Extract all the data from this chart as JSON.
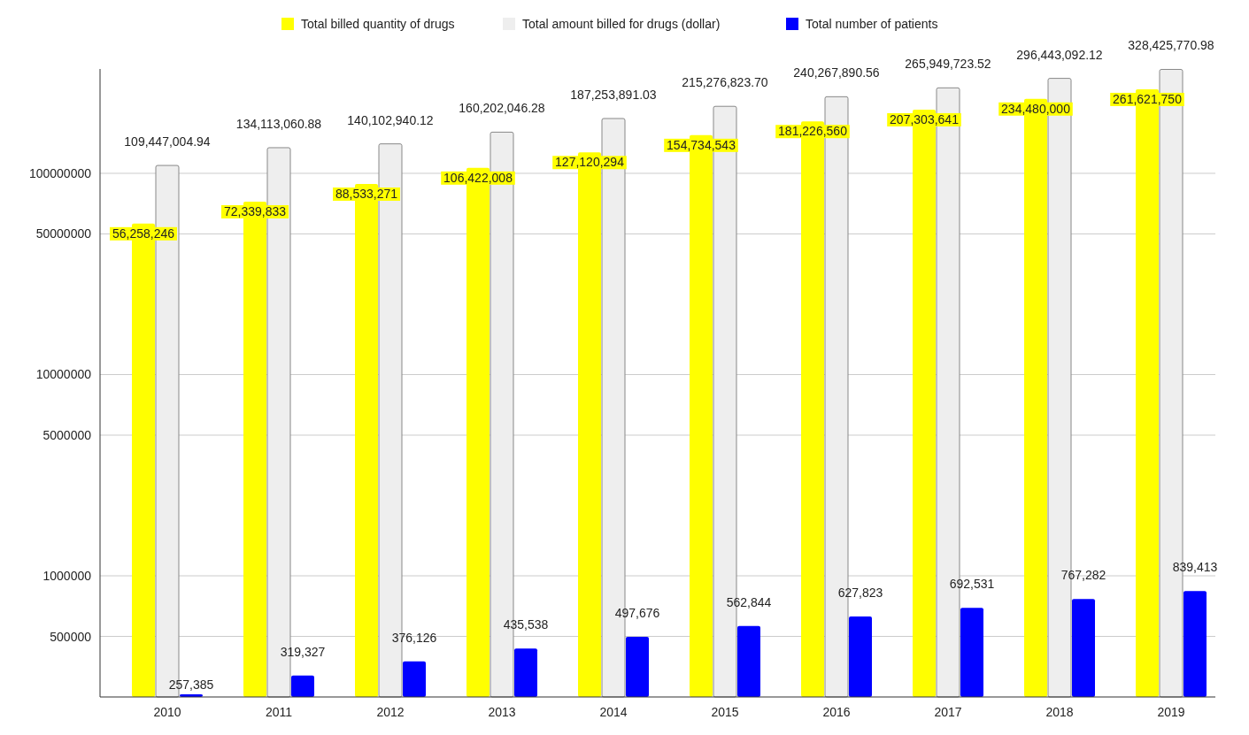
{
  "chart_data": {
    "type": "bar",
    "categories": [
      "2010",
      "2011",
      "2012",
      "2013",
      "2014",
      "2015",
      "2016",
      "2017",
      "2018",
      "2019"
    ],
    "series": [
      {
        "name": "Total billed quantity of drugs",
        "color": "#ffff00",
        "values": [
          56258246,
          72339833,
          88533271,
          106422008,
          127120294,
          154734543,
          181226560,
          207303641,
          234480000,
          261621750
        ],
        "value_labels": [
          "56,258,246",
          "72,339,833",
          "88,533,271",
          "106,422,008",
          "127,120,294",
          "154,734,543",
          "181,226,560",
          "207,303,641",
          "234,480,000",
          "261,621,750"
        ]
      },
      {
        "name": "Total amount billed for drugs (dollar)",
        "color": "#eeeeee",
        "values": [
          109447004.94,
          134113060.88,
          140102940.12,
          160202046.28,
          187253891.03,
          215276823.7,
          240267890.56,
          265949723.52,
          296443092.12,
          328425770.98
        ],
        "value_labels": [
          "109,447,004.94",
          "134,113,060.88",
          "140,102,940.12",
          "160,202,046.28",
          "187,253,891.03",
          "215,276,823.70",
          "240,267,890.56",
          "265,949,723.52",
          "296,443,092.12",
          "328,425,770.98"
        ]
      },
      {
        "name": "Total number of patients",
        "color": "#0000ff",
        "values": [
          257385,
          319327,
          376126,
          435538,
          497676,
          562844,
          627823,
          692531,
          767282,
          839413
        ],
        "value_labels": [
          "257,385",
          "319,327",
          "376,126",
          "435,538",
          "497,676",
          "562,844",
          "627,823",
          "692,531",
          "767,282",
          "839,413"
        ]
      }
    ],
    "log": true,
    "ylim": [
      250000,
      330000000
    ],
    "yticks": [
      500000,
      1000000,
      5000000,
      10000000,
      50000000,
      100000000
    ],
    "grid": "y",
    "legend": "top"
  }
}
